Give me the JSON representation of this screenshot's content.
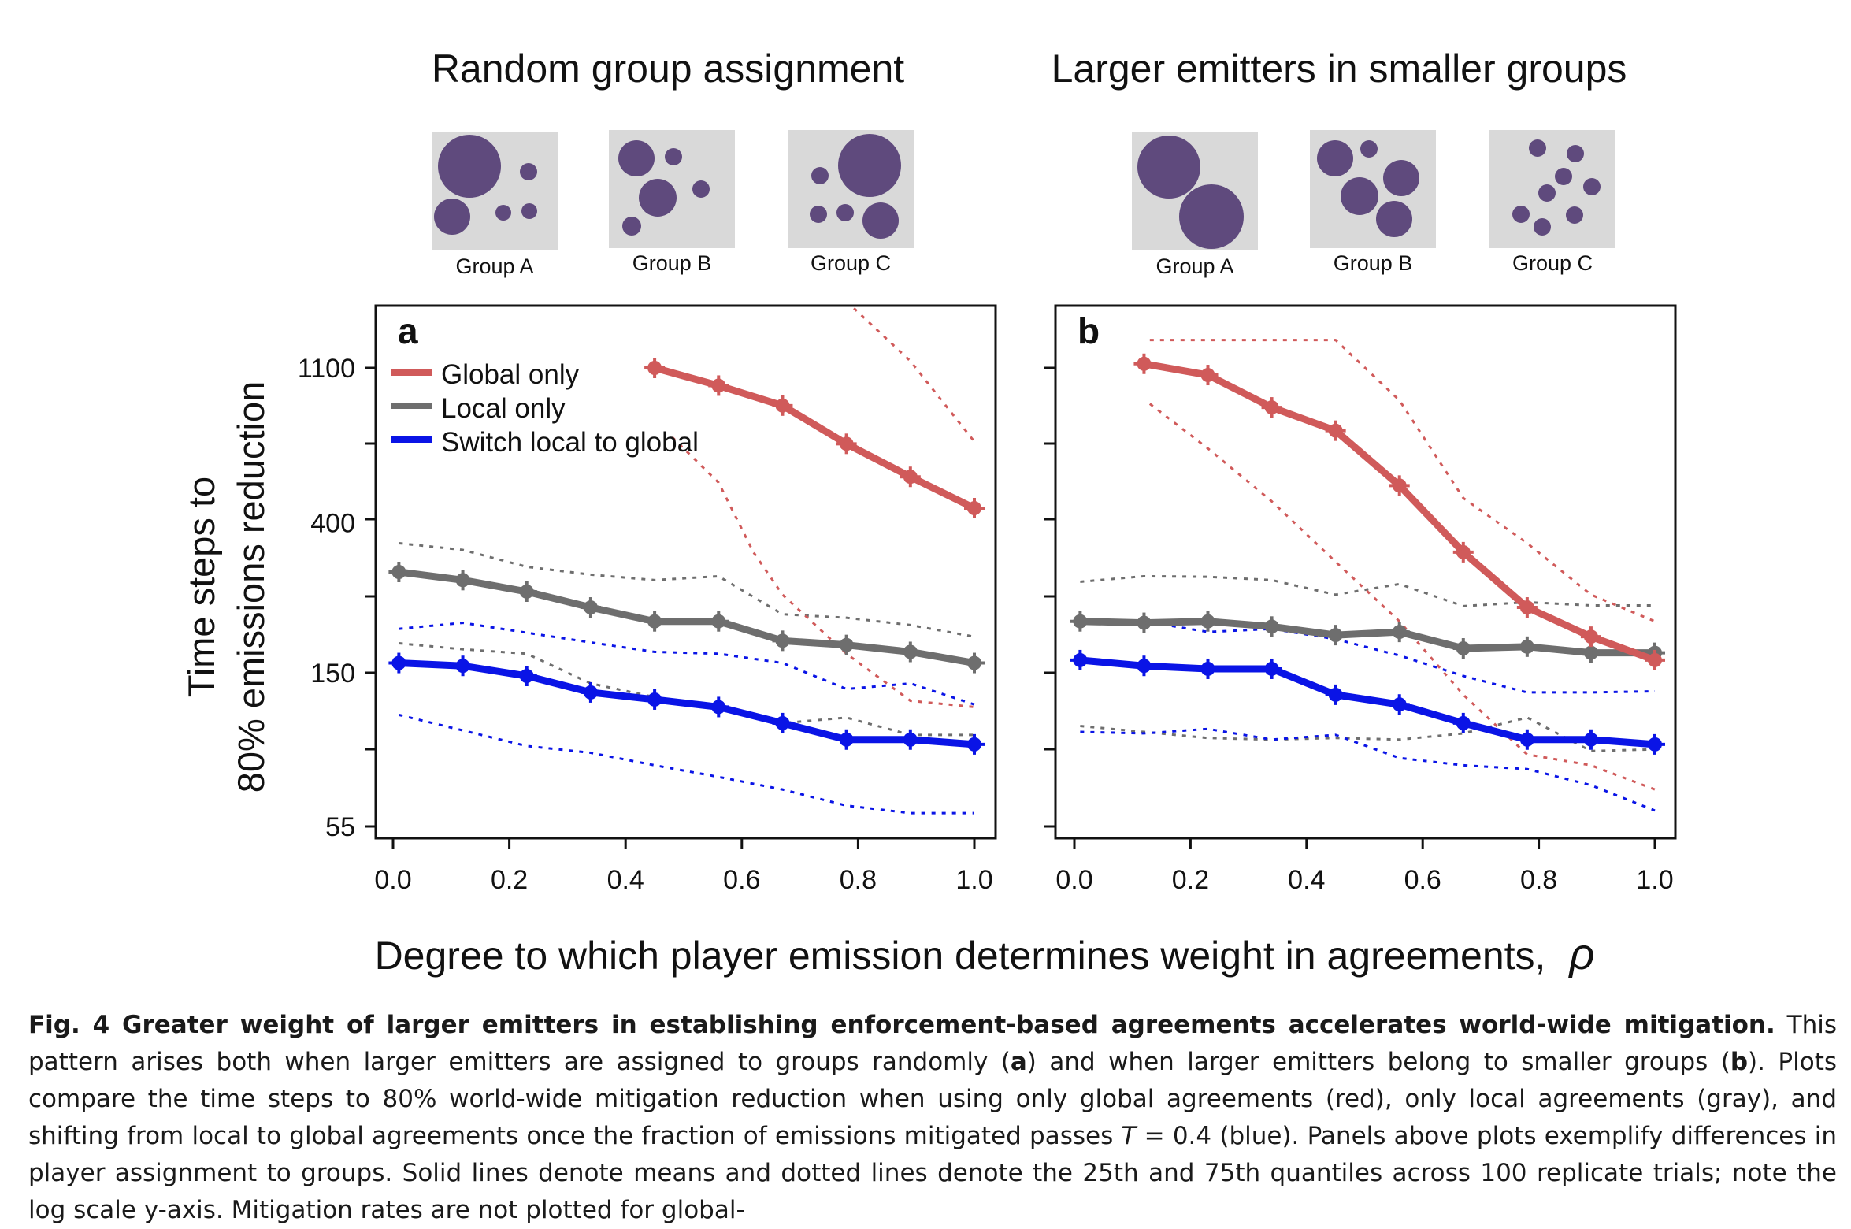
{
  "titles": {
    "left": "Random group assignment",
    "right": "Larger emitters in smaller groups"
  },
  "group_labels": [
    "Group A",
    "Group B",
    "Group C"
  ],
  "x_axis_title": "Degree to which player emission determines weight in agreements,",
  "x_axis_symbol": "ρ",
  "y_axis_title_line1": "Time steps to",
  "y_axis_title_line2": "80% emissions reduction",
  "colors": {
    "global": "#d05a5a",
    "local": "#6e6e6e",
    "switch": "#0a14e6",
    "group_fill": "#5f4a7d",
    "group_bg": "#d9d9d9"
  },
  "chart_data": [
    {
      "type": "line",
      "panel_label": "a",
      "y_scale": "log",
      "x_ticks": [
        "0.0",
        "0.2",
        "0.4",
        "0.6",
        "0.8",
        "1.0"
      ],
      "y_ticks": [
        "55",
        "150",
        "400",
        "1100"
      ],
      "y_tick_values": [
        55,
        150,
        400,
        1100
      ],
      "xlim": [
        0,
        1
      ],
      "ylim": [
        55,
        1700
      ],
      "legend": [
        "Global only",
        "Local only",
        "Switch local to global"
      ],
      "legend_position": "top-left",
      "series": [
        {
          "name": "Global only",
          "key": "global",
          "x": [
            0.45,
            0.56,
            0.67,
            0.78,
            0.89,
            1.0
          ],
          "y": [
            1100,
            980,
            860,
            670,
            540,
            440
          ],
          "q25": [
            {
              "x": 0.48,
              "y": 700
            },
            {
              "x": 0.56,
              "y": 520
            },
            {
              "x": 0.62,
              "y": 330
            },
            {
              "x": 0.67,
              "y": 250
            },
            {
              "x": 0.78,
              "y": 170
            },
            {
              "x": 0.89,
              "y": 125
            },
            {
              "x": 1.0,
              "y": 120
            }
          ],
          "q75": [
            {
              "x": 0.78,
              "y": 1700
            },
            {
              "x": 0.89,
              "y": 1150
            },
            {
              "x": 1.0,
              "y": 680
            }
          ]
        },
        {
          "name": "Local only",
          "key": "local",
          "x": [
            0.01,
            0.12,
            0.23,
            0.34,
            0.45,
            0.56,
            0.67,
            0.78,
            0.89,
            1.0
          ],
          "y": [
            290,
            275,
            255,
            230,
            210,
            210,
            185,
            180,
            172,
            160
          ],
          "q25": [
            {
              "x": 0.01,
              "y": 182
            },
            {
              "x": 0.12,
              "y": 175
            },
            {
              "x": 0.23,
              "y": 170
            },
            {
              "x": 0.34,
              "y": 140
            },
            {
              "x": 0.45,
              "y": 128
            },
            {
              "x": 0.56,
              "y": 118
            },
            {
              "x": 0.67,
              "y": 108
            },
            {
              "x": 0.78,
              "y": 112
            },
            {
              "x": 0.89,
              "y": 100
            },
            {
              "x": 1.0,
              "y": 100
            }
          ],
          "q75": [
            {
              "x": 0.01,
              "y": 350
            },
            {
              "x": 0.12,
              "y": 335
            },
            {
              "x": 0.23,
              "y": 300
            },
            {
              "x": 0.34,
              "y": 285
            },
            {
              "x": 0.45,
              "y": 275
            },
            {
              "x": 0.56,
              "y": 282
            },
            {
              "x": 0.67,
              "y": 220
            },
            {
              "x": 0.78,
              "y": 215
            },
            {
              "x": 0.89,
              "y": 205
            },
            {
              "x": 1.0,
              "y": 190
            }
          ]
        },
        {
          "name": "Switch local to global",
          "key": "switch",
          "x": [
            0.01,
            0.12,
            0.23,
            0.34,
            0.45,
            0.56,
            0.67,
            0.78,
            0.89,
            1.0
          ],
          "y": [
            160,
            157,
            147,
            132,
            126,
            120,
            108,
            97,
            97,
            94
          ],
          "q25": [
            {
              "x": 0.01,
              "y": 114
            },
            {
              "x": 0.12,
              "y": 103
            },
            {
              "x": 0.23,
              "y": 93
            },
            {
              "x": 0.34,
              "y": 89
            },
            {
              "x": 0.45,
              "y": 82
            },
            {
              "x": 0.56,
              "y": 76
            },
            {
              "x": 0.67,
              "y": 70
            },
            {
              "x": 0.78,
              "y": 63
            },
            {
              "x": 0.89,
              "y": 60
            },
            {
              "x": 1.0,
              "y": 60
            }
          ],
          "q75": [
            {
              "x": 0.01,
              "y": 200
            },
            {
              "x": 0.12,
              "y": 208
            },
            {
              "x": 0.23,
              "y": 195
            },
            {
              "x": 0.34,
              "y": 183
            },
            {
              "x": 0.45,
              "y": 172
            },
            {
              "x": 0.56,
              "y": 170
            },
            {
              "x": 0.67,
              "y": 160
            },
            {
              "x": 0.78,
              "y": 135
            },
            {
              "x": 0.89,
              "y": 140
            },
            {
              "x": 1.0,
              "y": 122
            }
          ]
        }
      ]
    },
    {
      "type": "line",
      "panel_label": "b",
      "y_scale": "log",
      "x_ticks": [
        "0.0",
        "0.2",
        "0.4",
        "0.6",
        "0.8",
        "1.0"
      ],
      "y_ticks": [],
      "y_tick_values": [
        55,
        150,
        400,
        1100
      ],
      "xlim": [
        0,
        1
      ],
      "ylim": [
        55,
        1700
      ],
      "series": [
        {
          "key": "global",
          "x": [
            0.12,
            0.23,
            0.34,
            0.45,
            0.56,
            0.67,
            0.78,
            0.89,
            1.0
          ],
          "y": [
            1130,
            1050,
            850,
            730,
            510,
            330,
            230,
            190,
            163
          ],
          "q25": [
            {
              "x": 0.13,
              "y": 870
            },
            {
              "x": 0.23,
              "y": 650
            },
            {
              "x": 0.34,
              "y": 460
            },
            {
              "x": 0.45,
              "y": 310
            },
            {
              "x": 0.56,
              "y": 210
            },
            {
              "x": 0.67,
              "y": 130
            },
            {
              "x": 0.78,
              "y": 88
            },
            {
              "x": 0.89,
              "y": 82
            },
            {
              "x": 1.0,
              "y": 70
            }
          ],
          "q75": [
            {
              "x": 0.13,
              "y": 1320
            },
            {
              "x": 0.45,
              "y": 1320
            },
            {
              "x": 0.56,
              "y": 890
            },
            {
              "x": 0.67,
              "y": 470
            },
            {
              "x": 0.78,
              "y": 350
            },
            {
              "x": 0.89,
              "y": 250
            },
            {
              "x": 1.0,
              "y": 210
            }
          ]
        },
        {
          "key": "local",
          "x": [
            0.01,
            0.12,
            0.23,
            0.34,
            0.45,
            0.56,
            0.67,
            0.78,
            0.89,
            1.0
          ],
          "y": [
            210,
            208,
            210,
            203,
            192,
            196,
            176,
            178,
            171,
            171
          ],
          "q25": [
            {
              "x": 0.01,
              "y": 106
            },
            {
              "x": 0.12,
              "y": 102
            },
            {
              "x": 0.23,
              "y": 98
            },
            {
              "x": 0.34,
              "y": 97
            },
            {
              "x": 0.45,
              "y": 98
            },
            {
              "x": 0.56,
              "y": 97
            },
            {
              "x": 0.67,
              "y": 101
            },
            {
              "x": 0.78,
              "y": 112
            },
            {
              "x": 0.89,
              "y": 90
            },
            {
              "x": 1.0,
              "y": 91
            }
          ],
          "q75": [
            {
              "x": 0.01,
              "y": 272
            },
            {
              "x": 0.12,
              "y": 282
            },
            {
              "x": 0.23,
              "y": 281
            },
            {
              "x": 0.34,
              "y": 275
            },
            {
              "x": 0.45,
              "y": 250
            },
            {
              "x": 0.56,
              "y": 268
            },
            {
              "x": 0.67,
              "y": 232
            },
            {
              "x": 0.78,
              "y": 238
            },
            {
              "x": 0.89,
              "y": 233
            },
            {
              "x": 1.0,
              "y": 233
            }
          ]
        },
        {
          "key": "switch",
          "x": [
            0.01,
            0.12,
            0.23,
            0.34,
            0.45,
            0.56,
            0.67,
            0.78,
            0.89,
            1.0
          ],
          "y": [
            163,
            157,
            154,
            154,
            130,
            122,
            108,
            97,
            97,
            94
          ],
          "q25": [
            {
              "x": 0.01,
              "y": 102
            },
            {
              "x": 0.12,
              "y": 101
            },
            {
              "x": 0.23,
              "y": 104
            },
            {
              "x": 0.34,
              "y": 97
            },
            {
              "x": 0.45,
              "y": 100
            },
            {
              "x": 0.56,
              "y": 86
            },
            {
              "x": 0.67,
              "y": 82
            },
            {
              "x": 0.78,
              "y": 80
            },
            {
              "x": 0.89,
              "y": 72
            },
            {
              "x": 1.0,
              "y": 61
            }
          ],
          "q75": [
            {
              "x": 0.01,
              "y": 213
            },
            {
              "x": 0.12,
              "y": 210
            },
            {
              "x": 0.23,
              "y": 196
            },
            {
              "x": 0.34,
              "y": 200
            },
            {
              "x": 0.45,
              "y": 187
            },
            {
              "x": 0.56,
              "y": 168
            },
            {
              "x": 0.67,
              "y": 147
            },
            {
              "x": 0.78,
              "y": 132
            },
            {
              "x": 0.89,
              "y": 132
            },
            {
              "x": 1.0,
              "y": 133
            }
          ]
        }
      ]
    }
  ],
  "caption": {
    "title": "Fig. 4 Greater weight of larger emitters in establishing enforcement-based agreements accelerates world-wide mitigation.",
    "text1": " This pattern arises both when larger emitters are assigned to groups randomly (",
    "ref_a": "a",
    "text2": ") and when larger emitters belong to smaller groups (",
    "ref_b": "b",
    "text3": "). Plots compare the time steps to 80% world-wide mitigation reduction when using only global agreements (red), only local agreements (gray), and shifting from local to global agreements once the fraction of emissions mitigated passes ",
    "t_symbol": "T",
    "t_eq": " = 0.4",
    "text4": " (blue). Panels above plots exemplify differences in player assignment to groups. Solid lines denote means and dotted lines denote the 25th and 75th quantiles across 100 replicate trials; note the log scale y-axis. Mitigation rates are not plotted for global-"
  }
}
